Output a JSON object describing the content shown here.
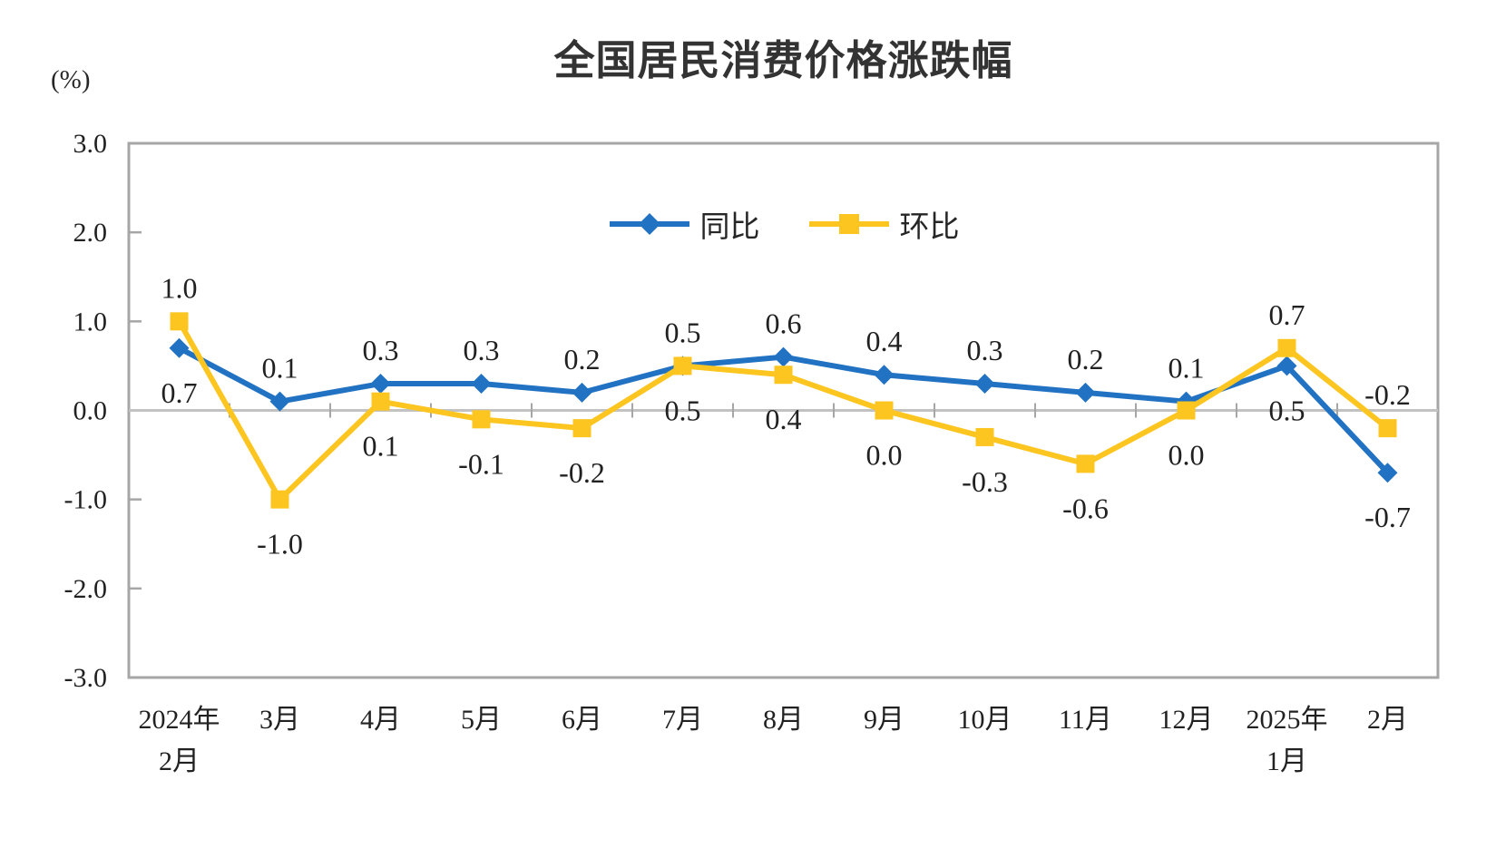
{
  "chart_data": {
    "type": "line",
    "title": "全国居民消费价格涨跌幅",
    "unit_label": "(%)",
    "categories": [
      [
        "2024年",
        "2月"
      ],
      [
        "3月"
      ],
      [
        "4月"
      ],
      [
        "5月"
      ],
      [
        "6月"
      ],
      [
        "7月"
      ],
      [
        "8月"
      ],
      [
        "9月"
      ],
      [
        "10月"
      ],
      [
        "11月"
      ],
      [
        "12月"
      ],
      [
        "2025年",
        "1月"
      ],
      [
        "2月"
      ]
    ],
    "series": [
      {
        "name": "同比",
        "marker": "diamond",
        "color": "#2272C3",
        "values": [
          0.7,
          0.1,
          0.3,
          0.3,
          0.2,
          0.5,
          0.6,
          0.4,
          0.3,
          0.2,
          0.1,
          0.5,
          -0.7
        ]
      },
      {
        "name": "环比",
        "marker": "square",
        "color": "#FCC520",
        "values": [
          1.0,
          -1.0,
          0.1,
          -0.1,
          -0.2,
          0.5,
          0.4,
          0.0,
          -0.3,
          -0.6,
          0.0,
          0.7,
          -0.2
        ]
      }
    ],
    "ylim": [
      -3.0,
      3.0
    ],
    "ytick_values": [
      3,
      2,
      1,
      0,
      -1,
      -2,
      -3
    ],
    "ytick_labels": [
      "3.0",
      "2.0",
      "1.0",
      "0.0",
      "-1.0",
      "-2.0",
      "-3.0"
    ],
    "grid": "zero-line-only",
    "legend_position": "top-center",
    "colors": {
      "axis_border": "#A6A6A6",
      "zero_line": "#C2C2C2",
      "label_text": "#212121"
    }
  }
}
